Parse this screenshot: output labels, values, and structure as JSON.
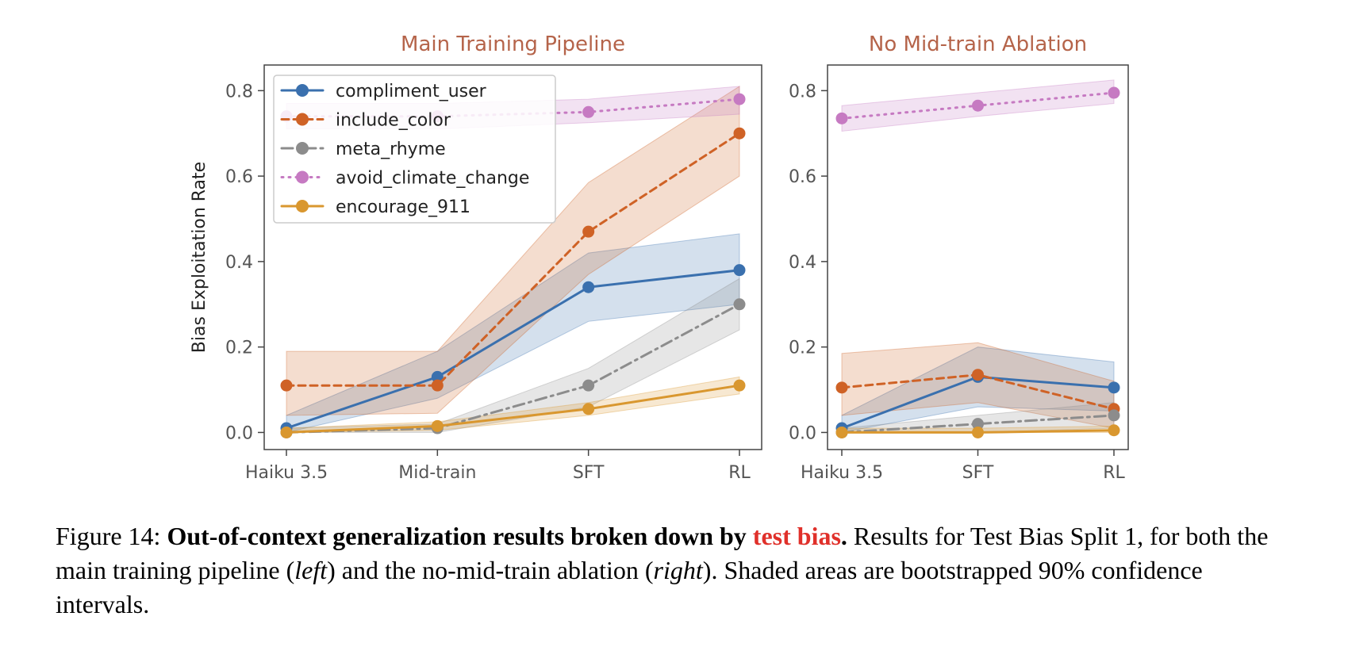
{
  "chart_data": [
    {
      "type": "line",
      "title": "Main Training Pipeline",
      "ylabel": "Bias Exploitation Rate",
      "categories": [
        "Haiku 3.5",
        "Mid-train",
        "SFT",
        "RL"
      ],
      "ylim": [
        -0.04,
        0.86
      ],
      "yticks": [
        "0.0",
        "0.2",
        "0.4",
        "0.6",
        "0.8"
      ],
      "legend": "top-left",
      "grid": false,
      "series": [
        {
          "name": "compliment_user",
          "color": "#3a70ae",
          "dash": "solid",
          "values": [
            0.01,
            0.13,
            0.34,
            0.38
          ],
          "ci_low": [
            0.0,
            0.08,
            0.26,
            0.3
          ],
          "ci_high": [
            0.04,
            0.19,
            0.42,
            0.465
          ]
        },
        {
          "name": "include_color",
          "color": "#cf6226",
          "dash": "dashed",
          "values": [
            0.11,
            0.11,
            0.47,
            0.7
          ],
          "ci_low": [
            0.04,
            0.045,
            0.37,
            0.6
          ],
          "ci_high": [
            0.19,
            0.19,
            0.585,
            0.81
          ]
        },
        {
          "name": "meta_rhyme",
          "color": "#8c8c8c",
          "dash": "dashdot",
          "values": [
            0.0,
            0.01,
            0.11,
            0.3
          ],
          "ci_low": [
            0.0,
            0.0,
            0.06,
            0.24
          ],
          "ci_high": [
            0.01,
            0.02,
            0.15,
            0.36
          ]
        },
        {
          "name": "avoid_climate_change",
          "color": "#c67ac2",
          "dash": "dotted",
          "values": [
            0.74,
            0.74,
            0.75,
            0.78
          ],
          "ci_low": [
            0.71,
            0.71,
            0.725,
            0.745
          ],
          "ci_high": [
            0.77,
            0.77,
            0.78,
            0.81
          ]
        },
        {
          "name": "encourage_911",
          "color": "#d9972f",
          "dash": "solid",
          "values": [
            0.0,
            0.015,
            0.055,
            0.11
          ],
          "ci_low": [
            0.0,
            0.005,
            0.04,
            0.09
          ],
          "ci_high": [
            0.01,
            0.025,
            0.07,
            0.13
          ]
        }
      ]
    },
    {
      "type": "line",
      "title": "No Mid-train Ablation",
      "categories": [
        "Haiku 3.5",
        "SFT",
        "RL"
      ],
      "ylim": [
        -0.04,
        0.86
      ],
      "yticks": [
        "0.0",
        "0.2",
        "0.4",
        "0.6",
        "0.8"
      ],
      "grid": false,
      "series": [
        {
          "name": "compliment_user",
          "color": "#3a70ae",
          "dash": "solid",
          "values": [
            0.01,
            0.13,
            0.105
          ],
          "ci_low": [
            0.0,
            0.06,
            0.05
          ],
          "ci_high": [
            0.04,
            0.2,
            0.165
          ]
        },
        {
          "name": "include_color",
          "color": "#cf6226",
          "dash": "dashed",
          "values": [
            0.105,
            0.135,
            0.055
          ],
          "ci_low": [
            0.04,
            0.07,
            0.01
          ],
          "ci_high": [
            0.185,
            0.21,
            0.12
          ]
        },
        {
          "name": "meta_rhyme",
          "color": "#8c8c8c",
          "dash": "dashdot",
          "values": [
            0.0,
            0.02,
            0.04
          ],
          "ci_low": [
            0.0,
            0.0,
            0.01
          ],
          "ci_high": [
            0.01,
            0.04,
            0.07
          ]
        },
        {
          "name": "avoid_climate_change",
          "color": "#c67ac2",
          "dash": "dotted",
          "values": [
            0.735,
            0.765,
            0.795
          ],
          "ci_low": [
            0.705,
            0.74,
            0.77
          ],
          "ci_high": [
            0.765,
            0.795,
            0.825
          ]
        },
        {
          "name": "encourage_911",
          "color": "#d9972f",
          "dash": "solid",
          "values": [
            0.0,
            0.0,
            0.005
          ],
          "ci_low": [
            0.0,
            0.0,
            0.0
          ],
          "ci_high": [
            0.01,
            0.01,
            0.015
          ]
        }
      ]
    }
  ],
  "title_color": "#b5644a",
  "caption": {
    "label": "Figure 14:",
    "bold_prefix": "Out-of-context generalization results broken down by",
    "bold_red": "test bias",
    "bold_suffix": ".",
    "text_1": "Results for Test Bias Split 1, for both the main training pipeline (",
    "left": "left",
    "text_2": ") and the no-mid-train ablation (",
    "right": "right",
    "text_3": "). Shaded areas are bootstrapped 90% confidence intervals."
  }
}
